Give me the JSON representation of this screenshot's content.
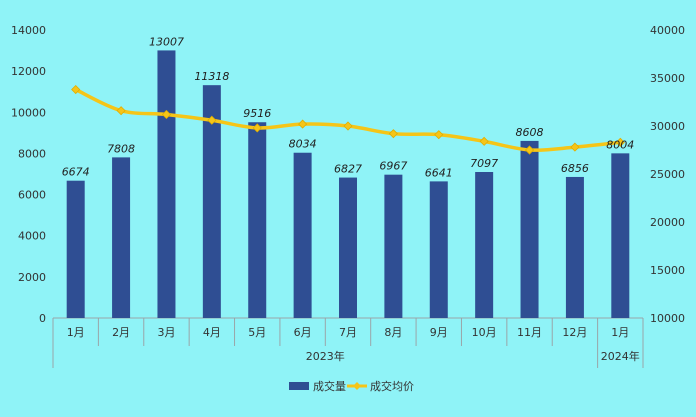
{
  "chart_data": {
    "type": "bar",
    "categories": [
      "1月",
      "2月",
      "3月",
      "4月",
      "5月",
      "6月",
      "7月",
      "8月",
      "9月",
      "10月",
      "11月",
      "12月",
      "1月"
    ],
    "groups": [
      {
        "label": "2023年",
        "count": 12
      },
      {
        "label": "2024年",
        "count": 1
      }
    ],
    "series": [
      {
        "name": "成交量",
        "type": "bar",
        "axis": "left",
        "values": [
          6674,
          7808,
          13007,
          11318,
          9516,
          8034,
          6827,
          6967,
          6641,
          7097,
          8608,
          6856,
          8004
        ],
        "color": "#2f4e93"
      },
      {
        "name": "成交均价",
        "type": "line",
        "axis": "right",
        "values": [
          33800,
          31600,
          31200,
          30600,
          29800,
          30200,
          30000,
          29200,
          29100,
          28400,
          27500,
          27800,
          28300
        ],
        "color": "#f5c518"
      }
    ],
    "y_left": {
      "min": 0,
      "max": 14000,
      "ticks": [
        "0",
        "2000",
        "4000",
        "6000",
        "8000",
        "10000",
        "12000",
        "14000"
      ]
    },
    "y_right": {
      "min": 10000,
      "max": 40000,
      "ticks": [
        "10000",
        "15000",
        "20000",
        "25000",
        "30000",
        "35000",
        "40000"
      ]
    },
    "grid": false,
    "legend": "bottom-center"
  }
}
